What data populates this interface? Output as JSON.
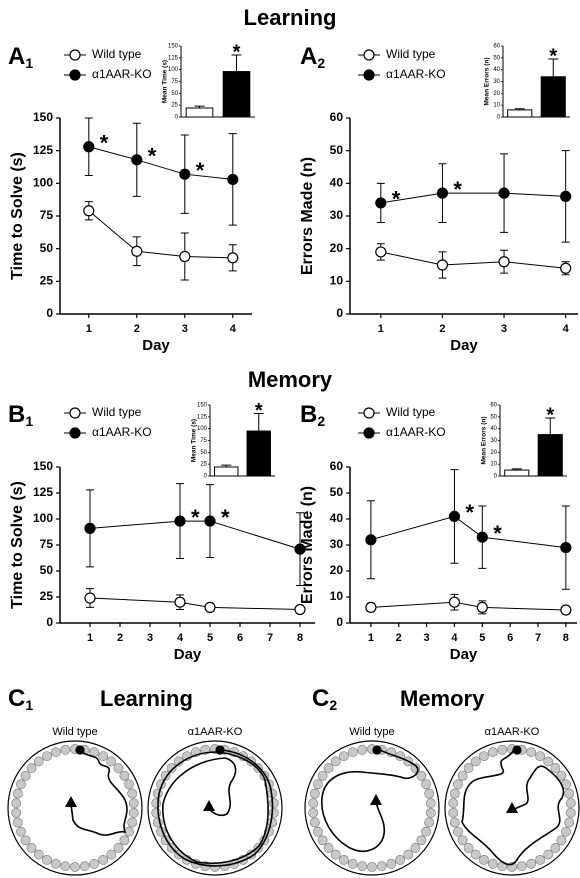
{
  "headings": {
    "learning": "Learning",
    "memory": "Memory"
  },
  "panel_labels": [
    {
      "letter": "A",
      "sub": "1"
    },
    {
      "letter": "A",
      "sub": "2"
    },
    {
      "letter": "B",
      "sub": "1"
    },
    {
      "letter": "B",
      "sub": "2"
    },
    {
      "letter": "C",
      "sub": "1"
    },
    {
      "letter": "C",
      "sub": "2"
    }
  ],
  "chart_data": [
    {
      "type": "line",
      "xlabel": "Day",
      "ylabel": "Time to Solve (s)",
      "x": [
        1,
        2,
        3,
        4
      ],
      "xlim": [
        0.4,
        4.4
      ],
      "xticks": [
        1,
        2,
        3,
        4
      ],
      "ylim": [
        0,
        150
      ],
      "yticks": [
        0,
        25,
        50,
        75,
        100,
        125,
        150
      ],
      "series": [
        {
          "name": "Wild type",
          "color": "#ffffff",
          "values": [
            79,
            48,
            44,
            43
          ],
          "errors": [
            7,
            11,
            18,
            10
          ]
        },
        {
          "name": "α1AAR-KO",
          "color": "#000000",
          "values": [
            128,
            118,
            107,
            103
          ],
          "errors": [
            22,
            28,
            30,
            35
          ]
        }
      ],
      "annotations": [
        {
          "text": "*",
          "x": 1
        },
        {
          "text": "*",
          "x": 2
        },
        {
          "text": "*",
          "x": 3
        }
      ]
    },
    {
      "type": "bar",
      "ylabel": "Mean Time (s)",
      "categories": [
        null,
        null
      ],
      "values": [
        19,
        96
      ],
      "errors": [
        4,
        35
      ],
      "colors": [
        "#ffffff",
        "#000000"
      ],
      "ylim": [
        0,
        150
      ],
      "yticks": [
        0,
        25,
        50,
        75,
        100,
        125,
        150
      ],
      "annotations": [
        {
          "text": "*",
          "bar": 1
        }
      ]
    },
    {
      "type": "line",
      "xlabel": "Day",
      "ylabel": "Errors Made (n)",
      "x": [
        1,
        2,
        3,
        4
      ],
      "xlim": [
        0.5,
        4.2
      ],
      "xticks": [
        1,
        2,
        3,
        4
      ],
      "ylim": [
        0,
        60
      ],
      "yticks": [
        0,
        10,
        20,
        30,
        40,
        50,
        60
      ],
      "series": [
        {
          "name": "Wild type",
          "color": "#ffffff",
          "values": [
            19,
            15,
            16,
            14
          ],
          "errors": [
            2.5,
            4,
            3.5,
            2
          ]
        },
        {
          "name": "α1AAR-KO",
          "color": "#000000",
          "values": [
            34,
            37,
            37,
            36
          ],
          "errors": [
            6,
            9,
            12,
            14
          ]
        }
      ],
      "annotations": [
        {
          "text": "*",
          "x": 1
        },
        {
          "text": "*",
          "x": 2
        }
      ]
    },
    {
      "type": "bar",
      "ylabel": "Mean Errors (n)",
      "categories": [
        null,
        null
      ],
      "values": [
        6,
        34
      ],
      "errors": [
        1,
        15
      ],
      "colors": [
        "#ffffff",
        "#000000"
      ],
      "ylim": [
        0,
        60
      ],
      "yticks": [
        0,
        10,
        20,
        30,
        40,
        50,
        60
      ],
      "annotations": [
        {
          "text": "*",
          "bar": 1
        }
      ]
    },
    {
      "type": "line",
      "xlabel": "Day",
      "ylabel": "Time to Solve (s)",
      "x": [
        1,
        4,
        5,
        8
      ],
      "xlim": [
        0,
        8.5
      ],
      "xticks": [
        1,
        2,
        3,
        4,
        5,
        6,
        7,
        8
      ],
      "ylim": [
        0,
        150
      ],
      "yticks": [
        0,
        25,
        50,
        75,
        100,
        125,
        150
      ],
      "series": [
        {
          "name": "Wild type",
          "color": "#ffffff",
          "values": [
            24,
            20,
            15,
            13
          ],
          "errors": [
            9,
            7,
            3,
            3
          ]
        },
        {
          "name": "α1AAR-KO",
          "color": "#000000",
          "values": [
            91,
            98,
            98,
            71
          ],
          "errors": [
            37,
            36,
            35,
            35
          ]
        }
      ],
      "annotations": [
        {
          "text": "*",
          "x": 4
        },
        {
          "text": "*",
          "x": 5
        }
      ]
    },
    {
      "type": "bar",
      "ylabel": "Mean Time (s)",
      "categories": [
        null,
        null
      ],
      "values": [
        19,
        95
      ],
      "errors": [
        4,
        37
      ],
      "colors": [
        "#ffffff",
        "#000000"
      ],
      "ylim": [
        0,
        150
      ],
      "yticks": [
        0,
        25,
        50,
        75,
        100,
        125,
        150
      ],
      "annotations": [
        {
          "text": "*",
          "bar": 1
        }
      ]
    },
    {
      "type": "line",
      "xlabel": "Day",
      "ylabel": "Errors Made (n)",
      "x": [
        1,
        4,
        5,
        8
      ],
      "xlim": [
        0.25,
        8.4
      ],
      "xticks": [
        1,
        2,
        3,
        4,
        5,
        6,
        7,
        8
      ],
      "ylim": [
        0,
        60
      ],
      "yticks": [
        0,
        10,
        20,
        30,
        40,
        50,
        60
      ],
      "series": [
        {
          "name": "Wild type",
          "color": "#ffffff",
          "values": [
            6,
            8,
            6,
            5
          ],
          "errors": [
            1.5,
            3,
            2.5,
            1
          ]
        },
        {
          "name": "α1AAR-KO",
          "color": "#000000",
          "values": [
            32,
            41,
            33,
            29
          ],
          "errors": [
            15,
            18,
            12,
            16
          ]
        }
      ],
      "annotations": [
        {
          "text": "*",
          "x": 4
        },
        {
          "text": "*",
          "x": 5
        }
      ]
    },
    {
      "type": "bar",
      "ylabel": "Mean Errors (n)",
      "categories": [
        null,
        null
      ],
      "values": [
        5,
        35
      ],
      "errors": [
        1,
        14
      ],
      "colors": [
        "#ffffff",
        "#000000"
      ],
      "ylim": [
        0,
        60
      ],
      "yticks": [
        0,
        10,
        20,
        30,
        40,
        50,
        60
      ],
      "annotations": [
        {
          "text": "*",
          "bar": 1
        }
      ]
    }
  ],
  "maze": {
    "titles": [
      "Learning",
      "Memory"
    ],
    "labels": [
      "Wild type",
      "α1AAR-KO",
      "Wild type",
      "α1AAR-KO"
    ]
  }
}
